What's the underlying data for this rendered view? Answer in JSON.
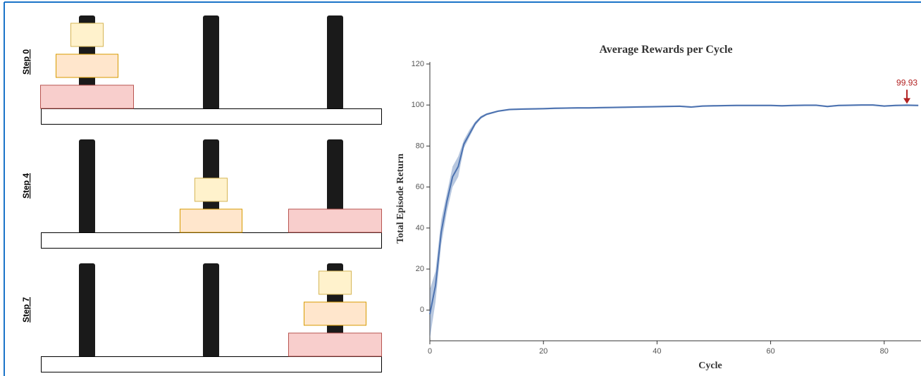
{
  "steps": [
    {
      "label": "Step 0",
      "pegs": [
        [
          3,
          2,
          1
        ],
        [],
        []
      ]
    },
    {
      "label": "Step 4",
      "pegs": [
        [],
        [
          2,
          1
        ],
        [
          3
        ]
      ]
    },
    {
      "label": "Step 7",
      "pegs": [
        [],
        [],
        [
          3,
          2,
          1
        ]
      ]
    }
  ],
  "chart_data": {
    "type": "line",
    "title": "Average Rewards per Cycle",
    "x_label": "Cycle",
    "y_label": "Total Episode Return",
    "x": [
      0,
      1,
      2,
      3,
      4,
      5,
      6,
      7,
      8,
      9,
      10,
      12,
      14,
      16,
      18,
      20,
      22,
      24,
      26,
      28,
      30,
      32,
      34,
      36,
      38,
      40,
      42,
      44,
      46,
      48,
      50,
      52,
      54,
      56,
      58,
      60,
      62,
      64,
      66,
      68,
      70,
      72,
      74,
      76,
      78,
      80,
      82,
      84,
      86
    ],
    "series": [
      {
        "color": "#4c72b0",
        "values": [
          -2,
          12,
          38,
          53,
          65,
          70,
          81,
          86,
          91,
          94,
          95.5,
          97,
          97.8,
          98,
          98.1,
          98.2,
          98.4,
          98.5,
          98.6,
          98.6,
          98.7,
          98.8,
          98.9,
          99,
          99.1,
          99.2,
          99.3,
          99.4,
          99,
          99.5,
          99.6,
          99.7,
          99.8,
          99.8,
          99.8,
          99.8,
          99.6,
          99.8,
          99.9,
          99.9,
          99.3,
          99.8,
          99.9,
          100,
          100,
          99.5,
          99.8,
          99.93,
          99.8
        ],
        "lower": [
          -14,
          4,
          32,
          48,
          60,
          65,
          79,
          84.5,
          90,
          93.3,
          95,
          96.6,
          97.4,
          97.6,
          97.7,
          97.8,
          98,
          98.1,
          98.2,
          98.2,
          98.3,
          98.4,
          98.5,
          98.6,
          98.7,
          98.8,
          98.9,
          99,
          98.6,
          99.1,
          99.2,
          99.3,
          99.4,
          99.4,
          99.4,
          99.4,
          99.2,
          99.4,
          99.5,
          99.5,
          98.9,
          99.4,
          99.5,
          99.6,
          99.6,
          99.1,
          99.4,
          99.5,
          99.4
        ],
        "upper": [
          10,
          19,
          44,
          57,
          70,
          75,
          83,
          88,
          92,
          94.7,
          96,
          97.4,
          98.2,
          98.4,
          98.5,
          98.6,
          98.8,
          98.9,
          99,
          99,
          99.1,
          99.2,
          99.3,
          99.4,
          99.5,
          99.6,
          99.7,
          99.8,
          99.4,
          99.9,
          100,
          100.1,
          100.2,
          100.2,
          100.2,
          100.2,
          100,
          100.2,
          100.3,
          100.3,
          99.7,
          100.2,
          100.3,
          100.4,
          100.4,
          99.9,
          100.2,
          100.3,
          100.2
        ]
      }
    ],
    "xlim": [
      0,
      86.5
    ],
    "ylim": [
      -15,
      121
    ],
    "xticks": [
      0,
      20,
      40,
      60,
      80
    ],
    "yticks": [
      0,
      20,
      40,
      60,
      80,
      100,
      120
    ],
    "annotation": {
      "x": 84,
      "value": 99.93,
      "color": "#b22222"
    }
  }
}
